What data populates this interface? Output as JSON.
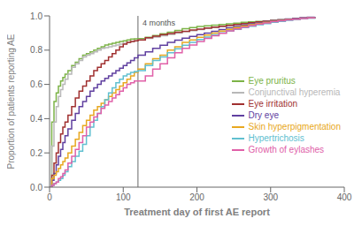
{
  "chart_data": {
    "type": "step",
    "xlabel": "Treatment day of first AE report",
    "ylabel": "Proportion of patients reporting AE",
    "xlim": [
      0,
      400
    ],
    "ylim": [
      0,
      1.0
    ],
    "xticks": [
      0,
      100,
      200,
      300,
      400
    ],
    "yticks": [
      {
        "value": 0,
        "label": "0.0"
      },
      0.2,
      0.4,
      0.6,
      0.8,
      {
        "value": 1.0,
        "label": "1.0"
      }
    ],
    "grid": false,
    "legend": "right",
    "annotations": [
      {
        "x": 120,
        "label": "4 months"
      }
    ],
    "x": [
      0,
      3,
      6,
      9,
      12,
      15,
      18,
      21,
      25,
      30,
      35,
      40,
      45,
      50,
      55,
      60,
      65,
      70,
      75,
      80,
      85,
      90,
      95,
      100,
      105,
      110,
      115,
      120,
      130,
      140,
      150,
      160,
      170,
      180,
      190,
      200,
      210,
      220,
      230,
      240,
      250,
      260,
      270,
      280,
      290,
      300,
      310,
      320,
      330,
      340,
      350,
      360
    ],
    "series": [
      {
        "name": "Eye pruritus",
        "color": "#7cb347",
        "values": [
          0,
          0.38,
          0.5,
          0.55,
          0.59,
          0.62,
          0.64,
          0.66,
          0.68,
          0.71,
          0.73,
          0.75,
          0.77,
          0.78,
          0.79,
          0.8,
          0.81,
          0.82,
          0.83,
          0.835,
          0.84,
          0.845,
          0.85,
          0.855,
          0.86,
          0.865,
          0.866,
          0.867,
          0.875,
          0.885,
          0.895,
          0.905,
          0.915,
          0.925,
          0.932,
          0.938,
          0.942,
          0.946,
          0.95,
          0.954,
          0.958,
          0.962,
          0.965,
          0.968,
          0.971,
          0.974,
          0.977,
          0.98,
          0.983,
          0.986,
          0.988,
          0.99
        ]
      },
      {
        "name": "Conjunctival hyperemia",
        "color": "#b8b8b8",
        "values": [
          0,
          0.24,
          0.38,
          0.47,
          0.53,
          0.57,
          0.6,
          0.63,
          0.66,
          0.7,
          0.72,
          0.74,
          0.76,
          0.77,
          0.78,
          0.79,
          0.8,
          0.81,
          0.815,
          0.82,
          0.825,
          0.83,
          0.835,
          0.84,
          0.845,
          0.85,
          0.855,
          0.86,
          0.868,
          0.876,
          0.884,
          0.892,
          0.9,
          0.908,
          0.914,
          0.92,
          0.926,
          0.932,
          0.938,
          0.944,
          0.95,
          0.955,
          0.96,
          0.965,
          0.968,
          0.972,
          0.975,
          0.978,
          0.981,
          0.984,
          0.987,
          0.99
        ]
      },
      {
        "name": "Eye irritation",
        "color": "#a03030",
        "values": [
          0,
          0.07,
          0.14,
          0.2,
          0.26,
          0.31,
          0.35,
          0.38,
          0.42,
          0.47,
          0.52,
          0.56,
          0.59,
          0.62,
          0.65,
          0.68,
          0.7,
          0.72,
          0.74,
          0.76,
          0.78,
          0.8,
          0.82,
          0.835,
          0.845,
          0.85,
          0.855,
          0.86,
          0.872,
          0.882,
          0.89,
          0.897,
          0.904,
          0.91,
          0.917,
          0.923,
          0.929,
          0.934,
          0.94,
          0.945,
          0.95,
          0.955,
          0.96,
          0.965,
          0.969,
          0.973,
          0.977,
          0.981,
          0.985,
          0.988,
          0.991,
          0.994
        ]
      },
      {
        "name": "Dry eye",
        "color": "#6040a0",
        "values": [
          0,
          0.04,
          0.08,
          0.13,
          0.18,
          0.22,
          0.26,
          0.3,
          0.34,
          0.39,
          0.43,
          0.47,
          0.5,
          0.53,
          0.56,
          0.58,
          0.6,
          0.62,
          0.635,
          0.65,
          0.665,
          0.68,
          0.695,
          0.71,
          0.725,
          0.74,
          0.755,
          0.77,
          0.79,
          0.81,
          0.828,
          0.845,
          0.858,
          0.87,
          0.88,
          0.89,
          0.9,
          0.91,
          0.92,
          0.93,
          0.938,
          0.946,
          0.953,
          0.96,
          0.966,
          0.972,
          0.977,
          0.982,
          0.986,
          0.989,
          0.992,
          0.995
        ]
      },
      {
        "name": "Skin hyperpigmentation",
        "color": "#e8a820",
        "values": [
          0,
          0.05,
          0.07,
          0.09,
          0.11,
          0.13,
          0.15,
          0.17,
          0.2,
          0.24,
          0.28,
          0.32,
          0.36,
          0.39,
          0.42,
          0.45,
          0.47,
          0.49,
          0.51,
          0.53,
          0.55,
          0.57,
          0.59,
          0.61,
          0.63,
          0.65,
          0.67,
          0.69,
          0.72,
          0.75,
          0.77,
          0.8,
          0.82,
          0.845,
          0.86,
          0.875,
          0.888,
          0.9,
          0.911,
          0.922,
          0.932,
          0.941,
          0.949,
          0.956,
          0.962,
          0.968,
          0.973,
          0.978,
          0.982,
          0.985,
          0.988,
          0.99
        ]
      },
      {
        "name": "Hypertrichosis",
        "color": "#60c0d0",
        "values": [
          0,
          0.01,
          0.02,
          0.03,
          0.04,
          0.05,
          0.07,
          0.09,
          0.12,
          0.15,
          0.18,
          0.21,
          0.25,
          0.3,
          0.35,
          0.39,
          0.43,
          0.47,
          0.51,
          0.55,
          0.58,
          0.61,
          0.63,
          0.65,
          0.66,
          0.67,
          0.675,
          0.68,
          0.71,
          0.74,
          0.76,
          0.785,
          0.808,
          0.828,
          0.846,
          0.862,
          0.876,
          0.889,
          0.901,
          0.912,
          0.922,
          0.932,
          0.94,
          0.948,
          0.955,
          0.962,
          0.968,
          0.974,
          0.979,
          0.983,
          0.987,
          0.99
        ]
      },
      {
        "name": "Growth of eylashes",
        "color": "#e060a8",
        "values": [
          0,
          0.01,
          0.02,
          0.03,
          0.05,
          0.06,
          0.08,
          0.1,
          0.14,
          0.18,
          0.22,
          0.26,
          0.3,
          0.35,
          0.38,
          0.41,
          0.43,
          0.46,
          0.48,
          0.5,
          0.52,
          0.54,
          0.56,
          0.58,
          0.6,
          0.61,
          0.62,
          0.62,
          0.65,
          0.69,
          0.72,
          0.755,
          0.785,
          0.81,
          0.83,
          0.85,
          0.868,
          0.884,
          0.898,
          0.912,
          0.924,
          0.934,
          0.943,
          0.952,
          0.959,
          0.966,
          0.972,
          0.977,
          0.981,
          0.985,
          0.988,
          0.99
        ]
      }
    ]
  }
}
